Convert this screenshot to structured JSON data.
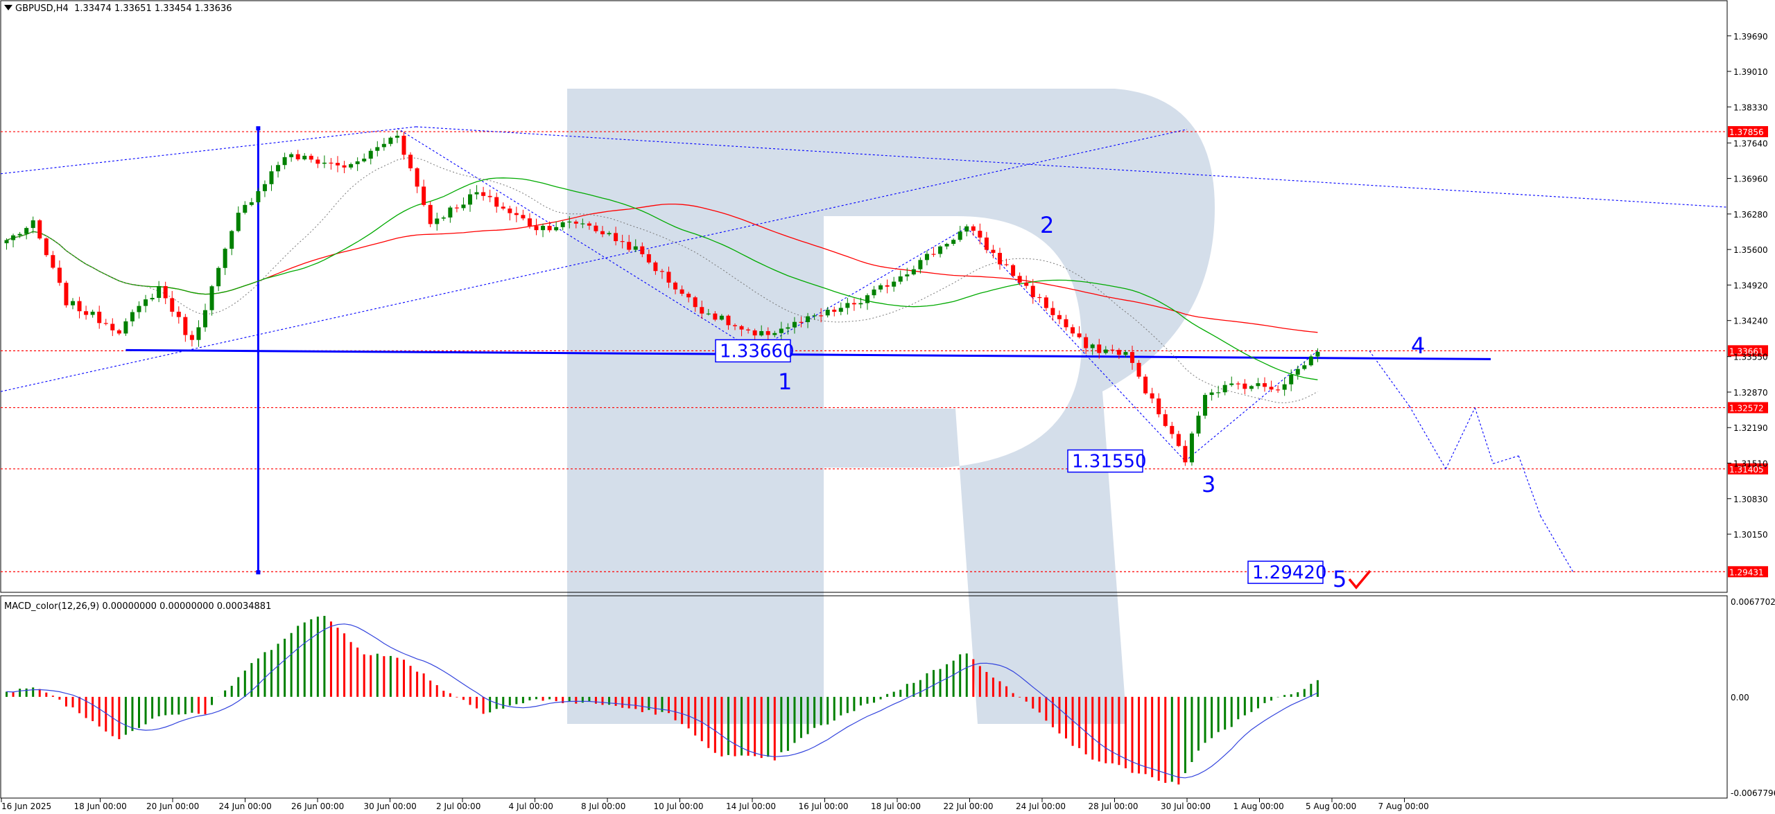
{
  "header": {
    "symbol": "GBPUSD,H4",
    "ohlc": "1.33474 1.33651 1.33454 1.33636"
  },
  "macd": {
    "label": "MACD_color(12,26,9) 0.00000000 0.00000000 0.00034881"
  },
  "colors": {
    "bull": "#008000",
    "bear": "#ff0000",
    "level_line": "#ff0000",
    "trend_blue": "#0000ff",
    "ma_slow": "#ff0000",
    "ma_fast": "#00aa00",
    "price_tag_bg": "#ff0000",
    "watermark": "#d4deea"
  },
  "chart_data": [
    {
      "type": "candlestick",
      "ylim": [
        1.2905,
        1.4035
      ],
      "y_ticks": [
        "1.39690",
        "1.39010",
        "1.38330",
        "1.37640",
        "1.36960",
        "1.36280",
        "1.35600",
        "1.34920",
        "1.34240",
        "1.33550",
        "1.32870",
        "1.32190",
        "1.31510",
        "1.30830",
        "1.30150"
      ],
      "x_ticks": [
        "16 Jun 2025",
        "18 Jun 00:00",
        "20 Jun 00:00",
        "24 Jun 00:00",
        "26 Jun 00:00",
        "30 Jun 00:00",
        "2 Jul 00:00",
        "4 Jul 00:00",
        "8 Jul 00:00",
        "10 Jul 00:00",
        "14 Jul 00:00",
        "16 Jul 00:00",
        "18 Jul 00:00",
        "22 Jul 00:00",
        "24 Jul 00:00",
        "28 Jul 00:00",
        "30 Jul 00:00",
        "1 Aug 00:00",
        "5 Aug 00:00",
        "7 Aug 00:00"
      ],
      "price_levels": [
        {
          "value": 1.37856,
          "label": "1.37856"
        },
        {
          "value": 1.33661,
          "label": "1.33661"
        },
        {
          "value": 1.32572,
          "label": "1.32572"
        },
        {
          "value": 1.314,
          "label": "1.31405"
        },
        {
          "value": 1.29431,
          "label": "1.29431"
        }
      ],
      "annotations": [
        {
          "text": "1.33660",
          "value": 1.3366
        },
        {
          "text": "1.31550",
          "value": 1.3155
        },
        {
          "text": "1.29420",
          "value": 1.2942
        }
      ],
      "wave_labels": [
        "1",
        "2",
        "3",
        "4",
        "5"
      ],
      "key_points": [
        {
          "x": 0,
          "y": 1.3578
        },
        {
          "x": 4,
          "y": 1.3608
        },
        {
          "x": 9,
          "y": 1.346
        },
        {
          "x": 17,
          "y": 1.3406
        },
        {
          "x": 23,
          "y": 1.3488
        },
        {
          "x": 28,
          "y": 1.3382
        },
        {
          "x": 35,
          "y": 1.3625
        },
        {
          "x": 42,
          "y": 1.374
        },
        {
          "x": 52,
          "y": 1.3718
        },
        {
          "x": 59,
          "y": 1.3782
        },
        {
          "x": 64,
          "y": 1.3612
        },
        {
          "x": 71,
          "y": 1.3668
        },
        {
          "x": 80,
          "y": 1.3602
        },
        {
          "x": 87,
          "y": 1.3612
        },
        {
          "x": 95,
          "y": 1.356
        },
        {
          "x": 104,
          "y": 1.3452
        },
        {
          "x": 113,
          "y": 1.3392
        },
        {
          "x": 121,
          "y": 1.3425
        },
        {
          "x": 129,
          "y": 1.346
        },
        {
          "x": 137,
          "y": 1.3528
        },
        {
          "x": 145,
          "y": 1.3602
        },
        {
          "x": 152,
          "y": 1.3512
        },
        {
          "x": 158,
          "y": 1.3438
        },
        {
          "x": 163,
          "y": 1.3372
        },
        {
          "x": 169,
          "y": 1.3362
        },
        {
          "x": 174,
          "y": 1.3245
        },
        {
          "x": 178,
          "y": 1.3158
        },
        {
          "x": 181,
          "y": 1.3288
        },
        {
          "x": 186,
          "y": 1.3302
        },
        {
          "x": 192,
          "y": 1.3296
        },
        {
          "x": 198,
          "y": 1.3364
        }
      ],
      "forecast_path": [
        1.3366,
        1.326,
        1.314,
        1.3257,
        1.315,
        1.3165,
        1.305,
        1.2942
      ]
    },
    {
      "type": "bar",
      "name": "MACD_color(12,26,9)",
      "ylim": [
        -0.0067796,
        0.0067702
      ],
      "y_ticks": [
        "0.0067702",
        "0.00",
        "-0.0067796"
      ],
      "key_points": [
        {
          "x": 0,
          "y": 0.0003
        },
        {
          "x": 5,
          "y": 0.0006
        },
        {
          "x": 9,
          "y": -0.0005
        },
        {
          "x": 17,
          "y": -0.0028
        },
        {
          "x": 23,
          "y": -0.0012
        },
        {
          "x": 30,
          "y": -0.0011
        },
        {
          "x": 36,
          "y": 0.0018
        },
        {
          "x": 44,
          "y": 0.0048
        },
        {
          "x": 48,
          "y": 0.0055
        },
        {
          "x": 54,
          "y": 0.003
        },
        {
          "x": 60,
          "y": 0.0025
        },
        {
          "x": 66,
          "y": 0.0005
        },
        {
          "x": 72,
          "y": -0.001
        },
        {
          "x": 80,
          "y": -0.0002
        },
        {
          "x": 90,
          "y": -0.0005
        },
        {
          "x": 100,
          "y": -0.0012
        },
        {
          "x": 108,
          "y": -0.004
        },
        {
          "x": 116,
          "y": -0.0042
        },
        {
          "x": 122,
          "y": -0.0022
        },
        {
          "x": 130,
          "y": -0.0005
        },
        {
          "x": 137,
          "y": 0.001
        },
        {
          "x": 145,
          "y": 0.003
        },
        {
          "x": 150,
          "y": 0.001
        },
        {
          "x": 157,
          "y": -0.0015
        },
        {
          "x": 163,
          "y": -0.004
        },
        {
          "x": 170,
          "y": -0.005
        },
        {
          "x": 177,
          "y": -0.006
        },
        {
          "x": 181,
          "y": -0.003
        },
        {
          "x": 190,
          "y": -0.0005
        },
        {
          "x": 198,
          "y": 0.001
        }
      ]
    }
  ]
}
